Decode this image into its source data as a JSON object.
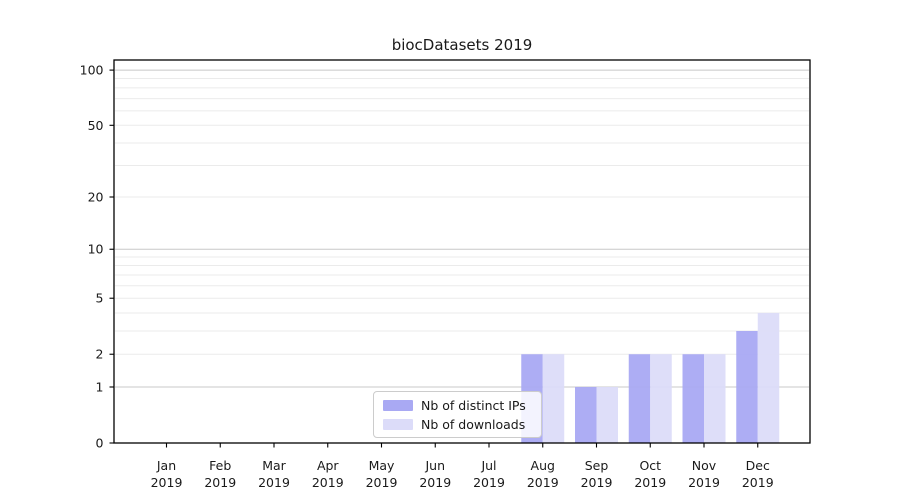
{
  "chart_data": {
    "type": "bar",
    "title": "biocDatasets 2019",
    "months": [
      "Jan",
      "Feb",
      "Mar",
      "Apr",
      "May",
      "Jun",
      "Jul",
      "Aug",
      "Sep",
      "Oct",
      "Nov",
      "Dec"
    ],
    "year_label": "2019",
    "series": [
      {
        "name": "Nb of distinct IPs",
        "color": "#a9a9f3",
        "values": [
          0,
          0,
          0,
          0,
          0,
          0,
          0,
          2,
          1,
          2,
          2,
          3
        ]
      },
      {
        "name": "Nb of downloads",
        "color": "#dcdcf9",
        "values": [
          0,
          0,
          0,
          0,
          0,
          0,
          0,
          2,
          1,
          2,
          2,
          4
        ]
      }
    ],
    "yscale": "log1p",
    "ylim": [
      0,
      113
    ],
    "yticks": [
      0,
      1,
      2,
      5,
      10,
      20,
      50,
      100
    ],
    "gridlines": {
      "major": [
        1,
        10,
        100
      ],
      "minor": [
        2,
        3,
        4,
        5,
        6,
        7,
        8,
        9,
        20,
        30,
        40,
        50,
        60,
        70,
        80,
        90
      ]
    },
    "grid": true,
    "legend_position": "lower center",
    "xlabel": "",
    "ylabel": ""
  },
  "colors": {
    "background": "#ffffff",
    "axis": "#000000",
    "text": "#1a1a1a",
    "grid_major": "#c8c8c8",
    "grid_minor": "#ebebeb",
    "legend_border": "#cccccc"
  }
}
